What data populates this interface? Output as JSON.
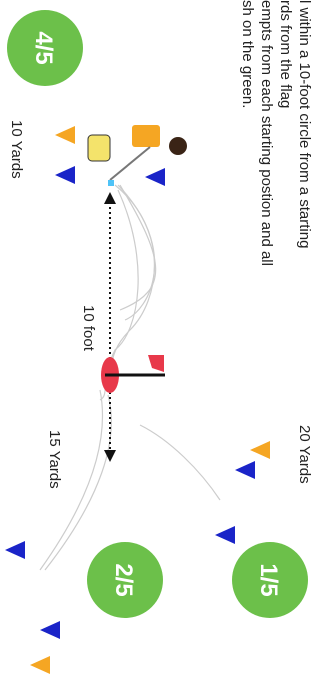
{
  "instructions": [
    "l within a 10-foot circle from a starting",
    "rds from the flag",
    "empts from each starting postion and all",
    "sh on the green."
  ],
  "stations": [
    {
      "label": "4/5",
      "distance": "10 Yards"
    },
    {
      "label": "2/5",
      "distance": "15 Yards"
    },
    {
      "label": "1/5",
      "distance": "20 Yards"
    }
  ],
  "measure": "10 foot"
}
